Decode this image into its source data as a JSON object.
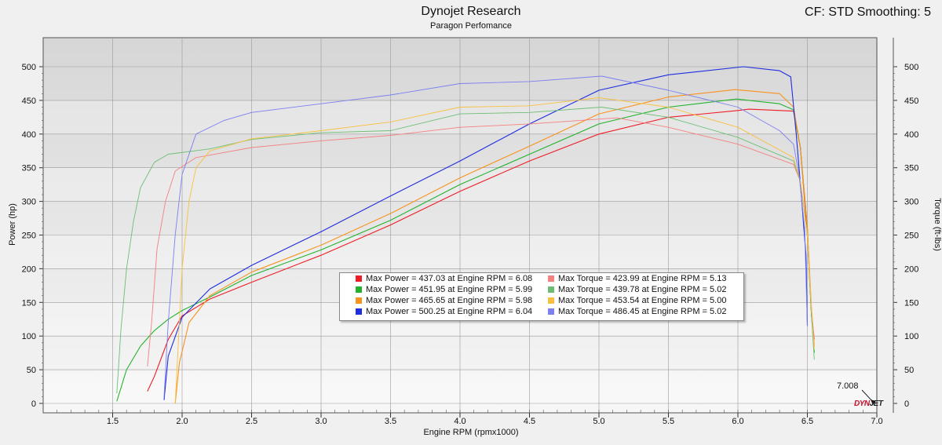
{
  "header": {
    "title": "Dynojet Research",
    "subtitle": "Paragon Perfomance",
    "corner": "CF: STD Smoothing: 5"
  },
  "cursor_value": "7.008",
  "brand": {
    "a": "DYN",
    "b": "JET"
  },
  "legend": [
    {
      "text": "Max Power = 437.03 at Engine RPM = 6.08",
      "color": "#ee1c24"
    },
    {
      "text": "Max Power = 451.95 at Engine RPM = 5.99",
      "color": "#22b22b"
    },
    {
      "text": "Max Power = 465.65 at Engine RPM = 5.98",
      "color": "#f7931e"
    },
    {
      "text": "Max Power = 500.25 at Engine RPM = 6.04",
      "color": "#1e2de0"
    },
    {
      "text": "Max Torque = 423.99 at Engine RPM = 5.13",
      "color": "#f48080"
    },
    {
      "text": "Max Torque = 439.78 at Engine RPM = 5.02",
      "color": "#6cbf72"
    },
    {
      "text": "Max Torque = 453.54 at Engine RPM = 5.00",
      "color": "#f9c040"
    },
    {
      "text": "Max Torque = 486.45 at Engine RPM = 5.02",
      "color": "#7b7ff0"
    }
  ],
  "chart_data": {
    "type": "line",
    "title": "Dynojet Research",
    "subtitle": "Paragon Perfomance",
    "xlabel": "Engine RPM (rpmx1000)",
    "ylabel": "Power (hp)",
    "y2label": "Torque (ft-lbs)",
    "xlim": [
      1.0,
      7.0
    ],
    "ylim": [
      0,
      500
    ],
    "xticks": [
      "1.5",
      "2.0",
      "2.5",
      "3.0",
      "3.5",
      "4.0",
      "4.5",
      "5.0",
      "5.5",
      "6.0",
      "6.5",
      "7.0"
    ],
    "yticks": [
      "0",
      "50",
      "100",
      "150",
      "200",
      "250",
      "300",
      "350",
      "400",
      "450",
      "500"
    ],
    "grid": true,
    "legend_position": "center",
    "series": [
      {
        "name": "Max Power = 437.03 at Engine RPM = 6.08",
        "color": "#ee1c24",
        "width": 1.1,
        "points": [
          [
            1.75,
            18
          ],
          [
            1.8,
            40
          ],
          [
            1.9,
            95
          ],
          [
            2.0,
            130
          ],
          [
            2.2,
            155
          ],
          [
            2.5,
            180
          ],
          [
            3.0,
            220
          ],
          [
            3.5,
            265
          ],
          [
            4.0,
            315
          ],
          [
            4.5,
            360
          ],
          [
            5.0,
            400
          ],
          [
            5.5,
            425
          ],
          [
            6.0,
            435
          ],
          [
            6.08,
            437
          ],
          [
            6.4,
            434
          ],
          [
            6.45,
            380
          ],
          [
            6.5,
            250
          ],
          [
            6.53,
            130
          ],
          [
            6.55,
            95
          ]
        ]
      },
      {
        "name": "Max Power = 451.95 at Engine RPM = 5.99",
        "color": "#22b22b",
        "width": 1.1,
        "points": [
          [
            1.53,
            3
          ],
          [
            1.6,
            50
          ],
          [
            1.7,
            85
          ],
          [
            1.8,
            108
          ],
          [
            1.9,
            125
          ],
          [
            2.0,
            138
          ],
          [
            2.2,
            158
          ],
          [
            2.5,
            190
          ],
          [
            3.0,
            228
          ],
          [
            3.5,
            272
          ],
          [
            4.0,
            325
          ],
          [
            4.5,
            370
          ],
          [
            5.0,
            415
          ],
          [
            5.5,
            440
          ],
          [
            5.99,
            452
          ],
          [
            6.3,
            445
          ],
          [
            6.4,
            436
          ],
          [
            6.45,
            380
          ],
          [
            6.5,
            260
          ],
          [
            6.53,
            130
          ],
          [
            6.55,
            75
          ]
        ]
      },
      {
        "name": "Max Power = 465.65 at Engine RPM = 5.98",
        "color": "#f7931e",
        "width": 1.1,
        "points": [
          [
            1.95,
            0
          ],
          [
            1.98,
            60
          ],
          [
            2.05,
            120
          ],
          [
            2.2,
            160
          ],
          [
            2.5,
            195
          ],
          [
            3.0,
            235
          ],
          [
            3.5,
            282
          ],
          [
            4.0,
            335
          ],
          [
            4.5,
            382
          ],
          [
            5.0,
            430
          ],
          [
            5.5,
            455
          ],
          [
            5.98,
            466
          ],
          [
            6.3,
            460
          ],
          [
            6.4,
            440
          ],
          [
            6.45,
            380
          ],
          [
            6.5,
            260
          ],
          [
            6.53,
            140
          ],
          [
            6.55,
            85
          ]
        ]
      },
      {
        "name": "Max Power = 500.25 at Engine RPM = 6.04",
        "color": "#1e2de0",
        "width": 1.1,
        "points": [
          [
            1.87,
            5
          ],
          [
            1.9,
            70
          ],
          [
            2.0,
            128
          ],
          [
            2.2,
            170
          ],
          [
            2.5,
            205
          ],
          [
            3.0,
            255
          ],
          [
            3.5,
            308
          ],
          [
            4.0,
            360
          ],
          [
            4.5,
            415
          ],
          [
            5.0,
            465
          ],
          [
            5.5,
            488
          ],
          [
            6.04,
            500
          ],
          [
            6.3,
            494
          ],
          [
            6.38,
            485
          ],
          [
            6.42,
            400
          ],
          [
            6.46,
            300
          ],
          [
            6.49,
            220
          ],
          [
            6.5,
            115
          ]
        ]
      },
      {
        "name": "Max Torque = 423.99 at Engine RPM = 5.13",
        "color": "#f48080",
        "width": 0.9,
        "points": [
          [
            1.75,
            55
          ],
          [
            1.78,
            120
          ],
          [
            1.82,
            230
          ],
          [
            1.88,
            300
          ],
          [
            1.95,
            345
          ],
          [
            2.1,
            365
          ],
          [
            2.5,
            380
          ],
          [
            3.0,
            390
          ],
          [
            3.5,
            398
          ],
          [
            4.0,
            410
          ],
          [
            4.5,
            415
          ],
          [
            5.13,
            424
          ],
          [
            5.5,
            410
          ],
          [
            6.0,
            385
          ],
          [
            6.4,
            355
          ],
          [
            6.45,
            330
          ],
          [
            6.5,
            250
          ],
          [
            6.53,
            140
          ],
          [
            6.55,
            95
          ]
        ]
      },
      {
        "name": "Max Torque = 439.78 at Engine RPM = 5.02",
        "color": "#6cbf72",
        "width": 0.9,
        "points": [
          [
            1.53,
            15
          ],
          [
            1.56,
            110
          ],
          [
            1.6,
            200
          ],
          [
            1.65,
            270
          ],
          [
            1.7,
            320
          ],
          [
            1.8,
            358
          ],
          [
            1.9,
            370
          ],
          [
            2.2,
            378
          ],
          [
            2.5,
            392
          ],
          [
            3.0,
            402
          ],
          [
            3.5,
            405
          ],
          [
            4.0,
            430
          ],
          [
            4.5,
            432
          ],
          [
            5.02,
            440
          ],
          [
            5.5,
            425
          ],
          [
            6.0,
            395
          ],
          [
            6.4,
            360
          ],
          [
            6.45,
            330
          ],
          [
            6.5,
            250
          ],
          [
            6.53,
            130
          ],
          [
            6.55,
            65
          ]
        ]
      },
      {
        "name": "Max Torque = 453.54 at Engine RPM = 5.00",
        "color": "#f9c040",
        "width": 0.9,
        "points": [
          [
            1.95,
            0
          ],
          [
            1.97,
            80
          ],
          [
            2.0,
            200
          ],
          [
            2.05,
            300
          ],
          [
            2.1,
            350
          ],
          [
            2.2,
            375
          ],
          [
            2.5,
            393
          ],
          [
            3.0,
            405
          ],
          [
            3.5,
            418
          ],
          [
            4.0,
            440
          ],
          [
            4.5,
            442
          ],
          [
            5.0,
            454
          ],
          [
            5.5,
            440
          ],
          [
            6.0,
            410
          ],
          [
            6.4,
            365
          ],
          [
            6.45,
            330
          ],
          [
            6.5,
            250
          ],
          [
            6.53,
            140
          ],
          [
            6.55,
            80
          ]
        ]
      },
      {
        "name": "Max Torque = 486.45 at Engine RPM = 5.02",
        "color": "#7b7ff0",
        "width": 0.9,
        "points": [
          [
            1.87,
            10
          ],
          [
            1.9,
            120
          ],
          [
            1.95,
            250
          ],
          [
            2.0,
            340
          ],
          [
            2.1,
            400
          ],
          [
            2.3,
            420
          ],
          [
            2.5,
            432
          ],
          [
            3.0,
            445
          ],
          [
            3.5,
            458
          ],
          [
            4.0,
            475
          ],
          [
            4.5,
            478
          ],
          [
            5.02,
            486
          ],
          [
            5.5,
            465
          ],
          [
            6.0,
            440
          ],
          [
            6.3,
            405
          ],
          [
            6.4,
            385
          ],
          [
            6.44,
            340
          ],
          [
            6.48,
            260
          ],
          [
            6.5,
            115
          ]
        ]
      }
    ]
  }
}
